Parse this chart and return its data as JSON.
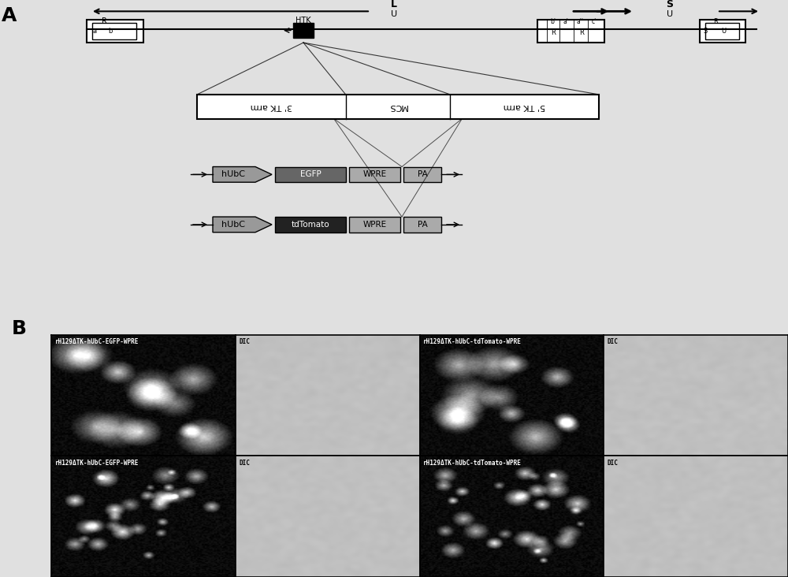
{
  "bg_color": "#e0e0e0",
  "panel_A_label": "A",
  "panel_B_label": "B",
  "mcs_labels": [
    "3’ TK arm",
    "MCS",
    "5’ TK arm"
  ],
  "construct1_labels": [
    "hUbC",
    "EGFP",
    "WPRE",
    "PA"
  ],
  "construct2_labels": [
    "hUbC",
    "tdTomato",
    "WPRE",
    "PA"
  ],
  "construct1_colors": [
    "#999999",
    "#666666",
    "#aaaaaa",
    "#aaaaaa"
  ],
  "construct2_colors": [
    "#999999",
    "#222222",
    "#aaaaaa",
    "#aaaaaa"
  ],
  "microscopy_labels": [
    [
      "rH129ΔTK-hUbC-EGFP-WPRE",
      "DIC",
      "rH129ΔTK-hUbC-tdTomato-WPRE",
      "DIC"
    ],
    [
      "rH129ΔTK-hUbC-EGFP-WPRE",
      "DIC",
      "rH129ΔTK-hUbC-tdTomato-WPRE",
      "DIC"
    ]
  ]
}
